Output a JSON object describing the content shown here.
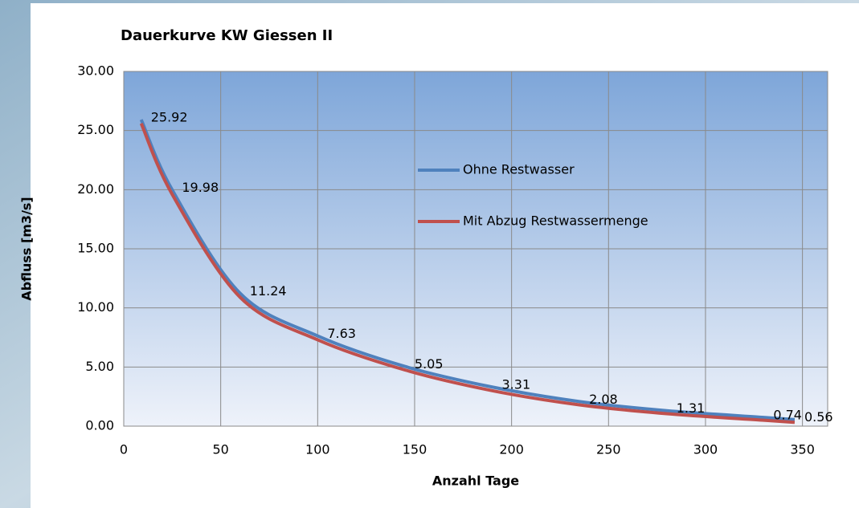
{
  "chart_data": {
    "type": "line",
    "title": "Dauerkurve KW Giessen II",
    "xlabel": "Anzahl Tage",
    "ylabel": "Abfluss [m3/s]",
    "x": [
      9,
      25,
      60,
      100,
      145,
      190,
      235,
      280,
      330,
      346
    ],
    "series": [
      {
        "name": "Ohne Restwasser",
        "color": "#4f81bd",
        "values": [
          25.92,
          19.98,
          11.24,
          7.63,
          5.05,
          3.31,
          2.08,
          1.31,
          0.74,
          0.56
        ]
      },
      {
        "name": "Mit Abzug Restwassermenge",
        "color": "#c0504d",
        "values": [
          25.6,
          19.6,
          10.9,
          7.3,
          4.75,
          3.0,
          1.8,
          1.05,
          0.5,
          0.32
        ]
      }
    ],
    "xlim": [
      0,
      363
    ],
    "xticks": [
      0,
      50,
      100,
      150,
      200,
      250,
      300,
      350
    ],
    "ylim": [
      0,
      30
    ],
    "yticks": [
      {
        "value": 0,
        "label": "0.00"
      },
      {
        "value": 5,
        "label": "5.00"
      },
      {
        "value": 10,
        "label": "10.00"
      },
      {
        "value": 15,
        "label": "15.00"
      },
      {
        "value": 20,
        "label": "20.00"
      },
      {
        "value": 25,
        "label": "25.00"
      },
      {
        "value": 30,
        "label": "30.00"
      }
    ],
    "grid": true,
    "data_labels_series": 0
  }
}
